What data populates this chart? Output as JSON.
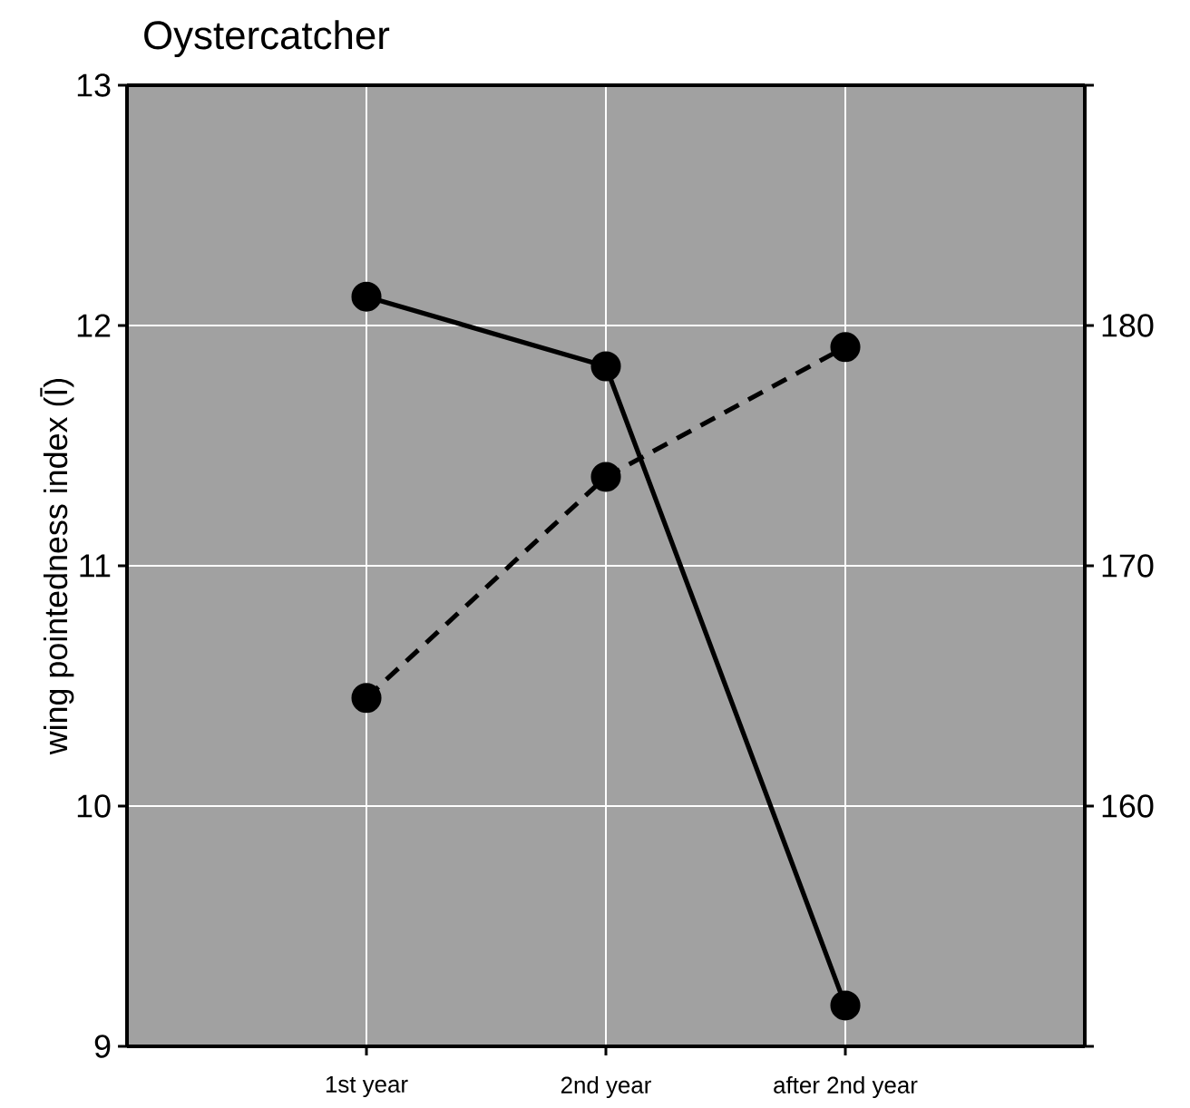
{
  "chart_data": {
    "type": "line",
    "title": "Oystercatcher",
    "ylabel": "wing pointedness index (Ī)",
    "categories": [
      "1st year",
      "2nd year",
      "after 2nd year"
    ],
    "series": [
      {
        "color": "#000000",
        "values": [
          12.12,
          11.83,
          9.17
        ],
        "line_style": "solid"
      },
      {
        "color": "#000000",
        "values": [
          164.5,
          173.7,
          179.1
        ],
        "line_style": "dashed",
        "axis": "y2"
      }
    ],
    "ylim": [
      9,
      13
    ],
    "yticks": [
      9,
      10,
      11,
      12,
      13
    ],
    "y2lim": [
      150,
      190
    ],
    "y2ticks": [
      {
        "value": 150,
        "label": null
      },
      160,
      170,
      180,
      {
        "value": 190,
        "label": null
      }
    ],
    "grid": true,
    "marker": "circle"
  }
}
